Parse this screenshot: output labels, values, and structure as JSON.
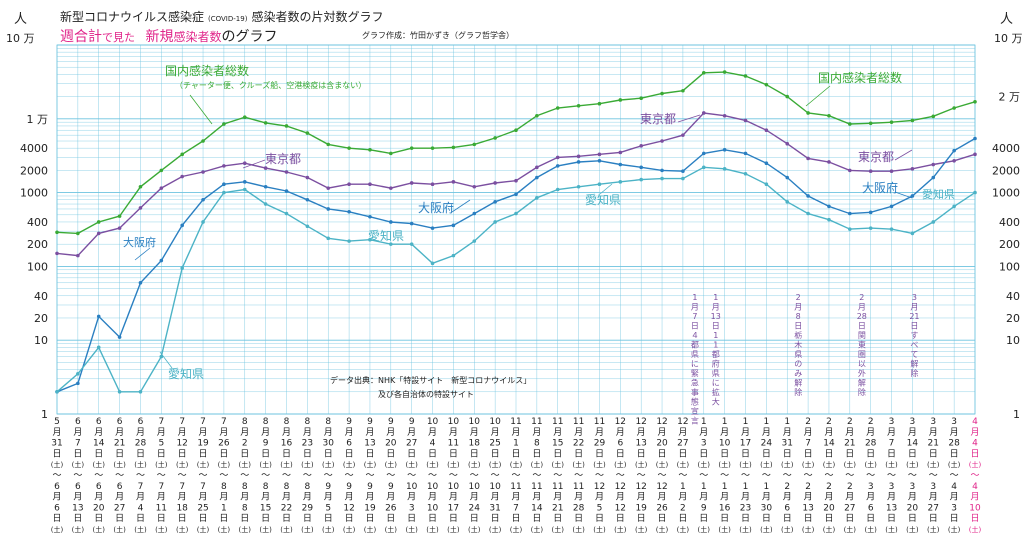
{
  "header": {
    "title_main": "新型コロナウイルス感染症",
    "title_covid": "(COVID-19)",
    "title_rest": "感染者数の片対数グラフ",
    "subtitle_a": "週合計",
    "subtitle_b": "で見た",
    "subtitle_c": "新規",
    "subtitle_d": "感染者数",
    "subtitle_e": "のグラフ",
    "author": "グラフ作成：竹田かずき（グラフ哲学舎）",
    "source_line1": "データ出典：NHK「特設サイト　新型コロナウイルス」",
    "source_line2": "及び各自治体の特設サイト"
  },
  "axis": {
    "unit": "人",
    "top_left": "10 万",
    "top_right": "10 万"
  },
  "colors": {
    "national": "#3aaa35",
    "tokyo": "#7b4fa0",
    "osaka": "#2a7fc1",
    "aichi": "#4cb3c6",
    "grid": "#6cc3df",
    "accent": "#e0258a",
    "note": "#7b4fa0"
  },
  "chart_data": {
    "type": "line",
    "yscale": "log",
    "ylim": [
      1,
      100000
    ],
    "title": "新型コロナウイルス感染症 (COVID-19) 感染者数の片対数グラフ",
    "y_ticks_left": [
      "10 万",
      "1 万",
      "4000",
      "2000",
      "1000",
      "400",
      "200",
      "100",
      "40",
      "20",
      "10",
      "1"
    ],
    "y_ticks_right": [
      "10 万",
      "2 万",
      "4000",
      "2000",
      "1000",
      "400",
      "200",
      "100",
      "40",
      "20",
      "10",
      "1"
    ],
    "week_start": [
      [
        "5",
        "31"
      ],
      [
        "6",
        "7"
      ],
      [
        "6",
        "14"
      ],
      [
        "6",
        "21"
      ],
      [
        "6",
        "28"
      ],
      [
        "7",
        "5"
      ],
      [
        "7",
        "12"
      ],
      [
        "7",
        "19"
      ],
      [
        "7",
        "26"
      ],
      [
        "8",
        "2"
      ],
      [
        "8",
        "9"
      ],
      [
        "8",
        "16"
      ],
      [
        "8",
        "23"
      ],
      [
        "8",
        "30"
      ],
      [
        "9",
        "6"
      ],
      [
        "9",
        "13"
      ],
      [
        "9",
        "20"
      ],
      [
        "9",
        "27"
      ],
      [
        "10",
        "4"
      ],
      [
        "10",
        "11"
      ],
      [
        "10",
        "18"
      ],
      [
        "10",
        "25"
      ],
      [
        "11",
        "1"
      ],
      [
        "11",
        "8"
      ],
      [
        "11",
        "15"
      ],
      [
        "11",
        "22"
      ],
      [
        "11",
        "29"
      ],
      [
        "12",
        "6"
      ],
      [
        "12",
        "13"
      ],
      [
        "12",
        "20"
      ],
      [
        "12",
        "27"
      ],
      [
        "1",
        "3"
      ],
      [
        "1",
        "10"
      ],
      [
        "1",
        "17"
      ],
      [
        "1",
        "24"
      ],
      [
        "1",
        "31"
      ],
      [
        "2",
        "7"
      ],
      [
        "2",
        "14"
      ],
      [
        "2",
        "21"
      ],
      [
        "2",
        "28"
      ],
      [
        "3",
        "7"
      ],
      [
        "3",
        "14"
      ],
      [
        "3",
        "21"
      ],
      [
        "3",
        "28"
      ],
      [
        "4",
        "4"
      ]
    ],
    "week_end": [
      [
        "6",
        "6"
      ],
      [
        "6",
        "13"
      ],
      [
        "6",
        "20"
      ],
      [
        "6",
        "27"
      ],
      [
        "7",
        "4"
      ],
      [
        "7",
        "11"
      ],
      [
        "7",
        "18"
      ],
      [
        "7",
        "25"
      ],
      [
        "8",
        "1"
      ],
      [
        "8",
        "8"
      ],
      [
        "8",
        "15"
      ],
      [
        "8",
        "22"
      ],
      [
        "8",
        "29"
      ],
      [
        "9",
        "5"
      ],
      [
        "9",
        "12"
      ],
      [
        "9",
        "19"
      ],
      [
        "9",
        "26"
      ],
      [
        "10",
        "3"
      ],
      [
        "10",
        "10"
      ],
      [
        "10",
        "17"
      ],
      [
        "10",
        "24"
      ],
      [
        "10",
        "31"
      ],
      [
        "11",
        "7"
      ],
      [
        "11",
        "14"
      ],
      [
        "11",
        "21"
      ],
      [
        "11",
        "28"
      ],
      [
        "12",
        "5"
      ],
      [
        "12",
        "12"
      ],
      [
        "12",
        "19"
      ],
      [
        "12",
        "26"
      ],
      [
        "1",
        "2"
      ],
      [
        "1",
        "9"
      ],
      [
        "1",
        "16"
      ],
      [
        "1",
        "23"
      ],
      [
        "1",
        "30"
      ],
      [
        "2",
        "6"
      ],
      [
        "2",
        "13"
      ],
      [
        "2",
        "20"
      ],
      [
        "2",
        "27"
      ],
      [
        "3",
        "6"
      ],
      [
        "3",
        "13"
      ],
      [
        "3",
        "20"
      ],
      [
        "3",
        "27"
      ],
      [
        "4",
        "3"
      ],
      [
        "4",
        "10"
      ]
    ],
    "series": [
      {
        "name": "国内感染者総数",
        "key": "national",
        "values": [
          290,
          280,
          400,
          480,
          1200,
          2000,
          3300,
          5000,
          8500,
          10500,
          8800,
          8000,
          6400,
          4500,
          4000,
          3800,
          3400,
          4000,
          4000,
          4100,
          4500,
          5500,
          7000,
          11000,
          14000,
          15000,
          16000,
          18000,
          19000,
          22000,
          24000,
          42000,
          43000,
          38000,
          29000,
          20000,
          12000,
          11000,
          8500,
          8700,
          9000,
          9500,
          10800,
          14000,
          17000
        ],
        "label": "国内感染者総数",
        "label2": "（チャーター便、クルーズ船、空港検疫は含まない）",
        "label_right": "国内感染者総数"
      },
      {
        "name": "東京都",
        "key": "tokyo",
        "values": [
          150,
          140,
          280,
          330,
          620,
          1150,
          1650,
          1900,
          2300,
          2500,
          2150,
          1900,
          1600,
          1150,
          1300,
          1300,
          1150,
          1350,
          1300,
          1400,
          1200,
          1350,
          1450,
          2200,
          3000,
          3100,
          3300,
          3500,
          4300,
          5000,
          6000,
          12000,
          11000,
          9500,
          7000,
          4600,
          2900,
          2600,
          2000,
          1950,
          1950,
          2100,
          2400,
          2700,
          3300
        ],
        "label": "東京都",
        "label_right": "東京都"
      },
      {
        "name": "大阪府",
        "key": "osaka",
        "values": [
          2,
          2.6,
          21,
          11,
          60,
          120,
          360,
          800,
          1300,
          1400,
          1200,
          1050,
          800,
          600,
          550,
          470,
          400,
          380,
          330,
          360,
          520,
          750,
          950,
          1600,
          2300,
          2600,
          2700,
          2400,
          2200,
          2000,
          1950,
          3400,
          3800,
          3400,
          2500,
          1600,
          900,
          650,
          520,
          540,
          650,
          900,
          1600,
          3700,
          5400
        ],
        "label": "大阪府",
        "label_right": "大阪府"
      },
      {
        "name": "愛知県",
        "key": "aichi",
        "values": [
          2,
          3.5,
          8,
          2,
          2,
          6,
          95,
          400,
          1000,
          1100,
          700,
          520,
          350,
          240,
          220,
          230,
          200,
          200,
          110,
          140,
          220,
          400,
          520,
          850,
          1100,
          1200,
          1300,
          1400,
          1500,
          1550,
          1550,
          2200,
          2100,
          1800,
          1300,
          750,
          520,
          430,
          320,
          330,
          320,
          280,
          400,
          650,
          1000
        ],
        "label": "愛知県",
        "label_low": "愛知県",
        "label_right": "愛知県"
      }
    ],
    "annotations": [
      {
        "date_m": "1",
        "date_d": "7",
        "text": "４都県に緊急事態宣言"
      },
      {
        "date_m": "1",
        "date_d": "13",
        "text": "11都府県に拡大"
      },
      {
        "date_m": "2",
        "date_d": "8",
        "text": "栃木県のみ解除"
      },
      {
        "date_m": "2",
        "date_d": "28",
        "text": "関東圏以外解除"
      },
      {
        "date_m": "3",
        "date_d": "21",
        "text": "すべて解除"
      }
    ],
    "day_mark": "土",
    "date_m_char": "月",
    "date_d_char": "日",
    "range_sep": "～"
  }
}
